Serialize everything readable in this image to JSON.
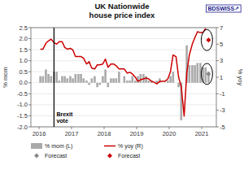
{
  "chart_data": {
    "type": "bar",
    "title": "UK Nationwide\nhouse price index",
    "y_label": "% mom",
    "y2_label": "% yoy",
    "xlim": [
      2015.75,
      2021.45
    ],
    "xticks": [
      2016,
      2017,
      2018,
      2019,
      2020,
      2021
    ],
    "ylim": [
      -2.0,
      2.5
    ],
    "yticks": [
      {
        "value": -2.0,
        "label": "-2.0"
      },
      {
        "value": -1.5,
        "label": "-1.5"
      },
      {
        "value": -1.0,
        "label": "-1.0"
      },
      {
        "value": -0.5,
        "label": "-0.5"
      },
      {
        "value": 0.0,
        "label": "0.0"
      },
      {
        "value": 0.5,
        "label": "0.5"
      },
      {
        "value": 1.0,
        "label": "1.0"
      },
      {
        "value": 1.5,
        "label": "1.5"
      },
      {
        "value": 2.0,
        "label": "2.0"
      },
      {
        "value": 2.5,
        "label": "2.5"
      }
    ],
    "y2lim": [
      -5,
      7
    ],
    "y2ticks": [
      -5,
      -3,
      -1,
      1,
      3,
      5,
      7
    ],
    "grid": true,
    "legend": "bottom",
    "annotations": [
      {
        "text": "Brexit\nvote",
        "x": 2016.46
      },
      {
        "text": "BDSWISS↗"
      }
    ],
    "series": [
      {
        "name": "% mom (L)",
        "type": "bar",
        "color": "#aaaaaa",
        "x": [
          2016.04,
          2016.12,
          2016.21,
          2016.29,
          2016.37,
          2016.46,
          2016.54,
          2016.62,
          2016.71,
          2016.79,
          2016.87,
          2016.96,
          2017.04,
          2017.12,
          2017.21,
          2017.29,
          2017.37,
          2017.46,
          2017.54,
          2017.62,
          2017.71,
          2017.79,
          2017.87,
          2017.96,
          2018.04,
          2018.12,
          2018.21,
          2018.29,
          2018.37,
          2018.46,
          2018.54,
          2018.62,
          2018.71,
          2018.79,
          2018.87,
          2018.96,
          2019.04,
          2019.12,
          2019.21,
          2019.29,
          2019.37,
          2019.46,
          2019.54,
          2019.62,
          2019.71,
          2019.79,
          2019.87,
          2019.96,
          2020.04,
          2020.12,
          2020.21,
          2020.29,
          2020.37,
          2020.46,
          2020.54,
          2020.62,
          2020.71,
          2020.79,
          2020.87,
          2020.96,
          2021.04,
          2021.12,
          2021.21
        ],
        "values": [
          0.3,
          0.3,
          0.6,
          0.4,
          0.3,
          0.5,
          0.5,
          0.1,
          0.3,
          0.3,
          0.2,
          0.3,
          0.2,
          0.4,
          0.4,
          0.4,
          0.2,
          0.1,
          -0.1,
          0.2,
          0.3,
          -0.2,
          -0.1,
          0.3,
          0.6,
          -0.2,
          0.2,
          0.2,
          0.2,
          0.5,
          0.0,
          0.3,
          0.1,
          0.1,
          0.3,
          0.1,
          0.3,
          0.4,
          0.4,
          0.3,
          0.1,
          0.1,
          0.0,
          0.1,
          0.2,
          0.0,
          0.0,
          0.1,
          0.3,
          0.5,
          0.0,
          -0.2,
          -1.7,
          0.0,
          1.7,
          0.8,
          0.8,
          0.8,
          0.9,
          0.9,
          0.7,
          0.7,
          0.5
        ]
      },
      {
        "name": "Forecast",
        "type": "scatter",
        "marker": "diamond",
        "color": "#888888",
        "x": [
          2021.21
        ],
        "values": [
          0.4
        ]
      },
      {
        "name": "% yoy (R)",
        "type": "line",
        "axis": "y2",
        "color": "#cc0000",
        "x": [
          2016.04,
          2016.12,
          2016.21,
          2016.29,
          2016.37,
          2016.46,
          2016.54,
          2016.62,
          2016.71,
          2016.79,
          2016.87,
          2016.96,
          2017.04,
          2017.12,
          2017.21,
          2017.29,
          2017.37,
          2017.46,
          2017.54,
          2017.62,
          2017.71,
          2017.79,
          2017.87,
          2017.96,
          2018.04,
          2018.12,
          2018.21,
          2018.29,
          2018.37,
          2018.46,
          2018.54,
          2018.62,
          2018.71,
          2018.79,
          2018.87,
          2018.96,
          2019.04,
          2019.12,
          2019.21,
          2019.29,
          2019.37,
          2019.46,
          2019.54,
          2019.62,
          2019.71,
          2019.79,
          2019.87,
          2019.96,
          2020.04,
          2020.12,
          2020.21,
          2020.29,
          2020.37,
          2020.46,
          2020.54,
          2020.62,
          2020.71,
          2020.79,
          2020.87,
          2020.96,
          2021.04,
          2021.12
        ],
        "values": [
          4.4,
          4.4,
          5.1,
          5.4,
          5.6,
          5.2,
          5.0,
          5.3,
          5.3,
          4.6,
          4.4,
          4.5,
          4.3,
          3.5,
          3.5,
          3.5,
          3.3,
          2.6,
          2.9,
          2.1,
          2.0,
          2.5,
          2.5,
          2.6,
          3.2,
          2.2,
          2.6,
          2.6,
          2.4,
          2.0,
          2.0,
          2.0,
          1.5,
          1.6,
          1.4,
          1.0,
          0.5,
          0.7,
          0.8,
          0.9,
          0.8,
          0.5,
          0.4,
          0.2,
          0.5,
          0.5,
          0.5,
          0.8,
          1.7,
          3.7,
          3.5,
          1.0,
          -0.1,
          -3.7,
          1.5,
          3.7,
          5.0,
          5.8,
          6.5,
          6.4,
          6.4,
          6.9
        ]
      },
      {
        "name": "Forecast",
        "type": "scatter",
        "marker": "diamond",
        "axis": "y2",
        "color": "#cc0000",
        "x": [
          2021.21
        ],
        "values": [
          5.5
        ]
      }
    ]
  }
}
